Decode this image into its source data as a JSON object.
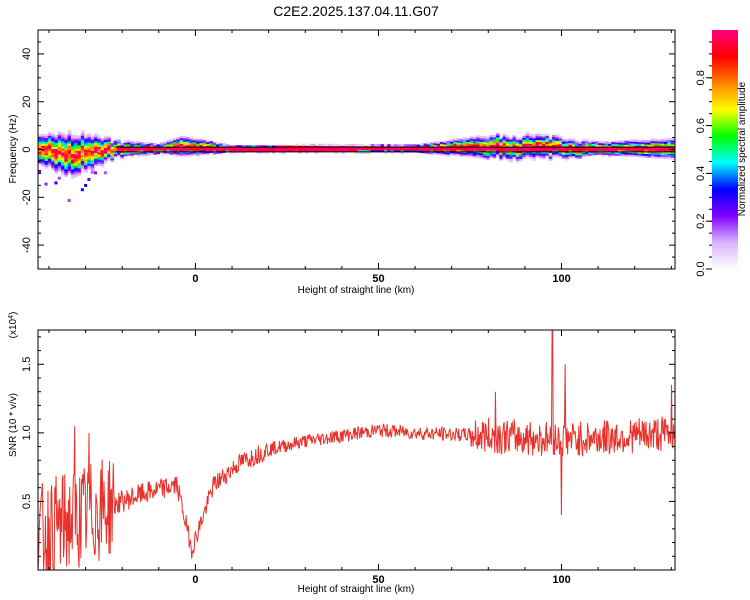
{
  "figure_title": "C2E2.2025.137.04.11.G07",
  "colors": {
    "snr_line": "#e8322b",
    "zero_line": "#000000"
  },
  "chart_data": [
    {
      "type": "heatmap",
      "xlabel": "Height of straight line (km)",
      "ylabel": "Frequency (Hz)",
      "xlim": [
        -43,
        131
      ],
      "ylim": [
        -50,
        50
      ],
      "xticks": [
        0,
        50,
        100
      ],
      "xtick_labels": [
        "0",
        "50",
        "100"
      ],
      "yticks": [
        -40,
        -20,
        0,
        20,
        40
      ],
      "ytick_labels": [
        "-40",
        "-20",
        "0",
        "20",
        "40"
      ],
      "colorbar": {
        "label": "Normalized spectral amplitude",
        "range": [
          0,
          1
        ],
        "ticks": [
          0,
          0.2,
          0.4,
          0.6,
          0.8
        ],
        "tick_labels": [
          "0.0",
          "0.2",
          "0.4",
          "0.6",
          "0.8"
        ],
        "colormap": [
          "#ffffff",
          "#d9b3ff",
          "#8000ff",
          "#0000ff",
          "#00ffff",
          "#00ff00",
          "#ffff00",
          "#ff8000",
          "#ff0000",
          "#ff0080"
        ]
      },
      "doppler_band": [
        {
          "x": -43,
          "center": -0.5,
          "spread": 4.5
        },
        {
          "x": -35,
          "center": -2.5,
          "spread": 6.5
        },
        {
          "x": -28,
          "center": -1.0,
          "spread": 5.0
        },
        {
          "x": -22,
          "center": 0,
          "spread": 2.5
        },
        {
          "x": -10,
          "center": 0,
          "spread": 1.5
        },
        {
          "x": -4,
          "center": 1.0,
          "spread": 3.0
        },
        {
          "x": 10,
          "center": 0,
          "spread": 1.0
        },
        {
          "x": 60,
          "center": 0,
          "spread": 1.2
        },
        {
          "x": 80,
          "center": 1.0,
          "spread": 3.5
        },
        {
          "x": 95,
          "center": 0.5,
          "spread": 3.5
        },
        {
          "x": 110,
          "center": 0,
          "spread": 2.0
        },
        {
          "x": 131,
          "center": 0,
          "spread": 3.0
        }
      ],
      "grid": false
    },
    {
      "type": "line",
      "xlabel": "Height of straight line (km)",
      "ylabel": "SNR (10 * v/v)",
      "ylabel_scale": "(x10^4)",
      "xlim": [
        -43,
        131
      ],
      "ylim": [
        0,
        1.75
      ],
      "xticks": [
        0,
        50,
        100
      ],
      "xtick_labels": [
        "0",
        "50",
        "100"
      ],
      "yticks": [
        0.5,
        1.0,
        1.5
      ],
      "ytick_labels": [
        "0.5",
        "1.0",
        "1.5"
      ],
      "trend": [
        {
          "x": -43,
          "y": 0.25
        },
        {
          "x": -35,
          "y": 0.35
        },
        {
          "x": -25,
          "y": 0.45
        },
        {
          "x": -15,
          "y": 0.55
        },
        {
          "x": -5,
          "y": 0.62
        },
        {
          "x": -1,
          "y": 0.15
        },
        {
          "x": 5,
          "y": 0.62
        },
        {
          "x": 12,
          "y": 0.78
        },
        {
          "x": 20,
          "y": 0.88
        },
        {
          "x": 30,
          "y": 0.94
        },
        {
          "x": 40,
          "y": 0.98
        },
        {
          "x": 50,
          "y": 1.02
        },
        {
          "x": 60,
          "y": 1.0
        },
        {
          "x": 80,
          "y": 0.98
        },
        {
          "x": 100,
          "y": 0.95
        },
        {
          "x": 115,
          "y": 0.97
        },
        {
          "x": 131,
          "y": 1.0
        }
      ],
      "spikes": [
        {
          "x": -33,
          "y": 1.05
        },
        {
          "x": -29,
          "y": 1.0
        },
        {
          "x": 82,
          "y": 1.3
        },
        {
          "x": 97.5,
          "y": 1.75
        },
        {
          "x": 100,
          "y": 0.4
        },
        {
          "x": 101,
          "y": 1.5
        },
        {
          "x": 130,
          "y": 1.35
        }
      ],
      "grid": false
    }
  ]
}
